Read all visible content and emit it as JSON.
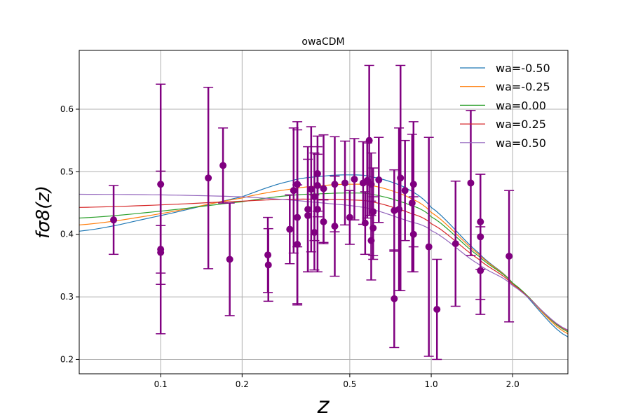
{
  "chart_data": {
    "type": "scatter",
    "title": "owaCDM",
    "xlabel": "z",
    "ylabel": "fσ8(z)",
    "xscale": "log",
    "xlim": [
      0.05,
      3.2
    ],
    "ylim": [
      0.177,
      0.694
    ],
    "grid": true,
    "legend_placement": "top-right",
    "xticks": [
      {
        "v": 0.1,
        "label": "0.1"
      },
      {
        "v": 0.2,
        "label": "0.2"
      },
      {
        "v": 0.5,
        "label": "0.5"
      },
      {
        "v": 1.0,
        "label": "1.0"
      },
      {
        "v": 2.0,
        "label": "2.0"
      }
    ],
    "yticks": [
      {
        "v": 0.2,
        "label": "0.2"
      },
      {
        "v": 0.3,
        "label": "0.3"
      },
      {
        "v": 0.4,
        "label": "0.4"
      },
      {
        "v": 0.5,
        "label": "0.5"
      },
      {
        "v": 0.6,
        "label": "0.6"
      }
    ],
    "data_color": "#800080",
    "data": [
      [
        0.067,
        0.423,
        0.055
      ],
      [
        0.1,
        0.48,
        0.16
      ],
      [
        0.1,
        0.376,
        0.038
      ],
      [
        0.1,
        0.371,
        0.13
      ],
      [
        0.15,
        0.49,
        0.145
      ],
      [
        0.17,
        0.51,
        0.06
      ],
      [
        0.18,
        0.36,
        0.09
      ],
      [
        0.249,
        0.367,
        0.06
      ],
      [
        0.25,
        0.351,
        0.058
      ],
      [
        0.3,
        0.408,
        0.055
      ],
      [
        0.31,
        0.47,
        0.1
      ],
      [
        0.32,
        0.48,
        0.1
      ],
      [
        0.32,
        0.427,
        0.14
      ],
      [
        0.32,
        0.384,
        0.095
      ],
      [
        0.35,
        0.44,
        0.1
      ],
      [
        0.35,
        0.43,
        0.09
      ],
      [
        0.36,
        0.472,
        0.1
      ],
      [
        0.37,
        0.403,
        0.06
      ],
      [
        0.37,
        0.46,
        0.07
      ],
      [
        0.38,
        0.497,
        0.06
      ],
      [
        0.38,
        0.478,
        0.05
      ],
      [
        0.38,
        0.44,
        0.1
      ],
      [
        0.4,
        0.473,
        0.086
      ],
      [
        0.4,
        0.42,
        0.035
      ],
      [
        0.44,
        0.48,
        0.076
      ],
      [
        0.44,
        0.413,
        0.08
      ],
      [
        0.48,
        0.482,
        0.067
      ],
      [
        0.5,
        0.427,
        0.043
      ],
      [
        0.52,
        0.488,
        0.065
      ],
      [
        0.56,
        0.482,
        0.066
      ],
      [
        0.57,
        0.418,
        0.05
      ],
      [
        0.58,
        0.486,
        0.06
      ],
      [
        0.59,
        0.55,
        0.12
      ],
      [
        0.6,
        0.39,
        0.063
      ],
      [
        0.6,
        0.48,
        0.05
      ],
      [
        0.61,
        0.436,
        0.07
      ],
      [
        0.61,
        0.41,
        0.05
      ],
      [
        0.64,
        0.487,
        0.068
      ],
      [
        0.73,
        0.297,
        0.078
      ],
      [
        0.73,
        0.438,
        0.065
      ],
      [
        0.76,
        0.44,
        0.13
      ],
      [
        0.77,
        0.49,
        0.18
      ],
      [
        0.8,
        0.47,
        0.08
      ],
      [
        0.85,
        0.45,
        0.11
      ],
      [
        0.86,
        0.48,
        0.1
      ],
      [
        0.86,
        0.4,
        0.06
      ],
      [
        0.98,
        0.38,
        0.175
      ],
      [
        1.05,
        0.28,
        0.08
      ],
      [
        1.23,
        0.385,
        0.1
      ],
      [
        1.4,
        0.482,
        0.116
      ],
      [
        1.52,
        0.42,
        0.076
      ],
      [
        1.52,
        0.396,
        0.1
      ],
      [
        1.52,
        0.342,
        0.07
      ],
      [
        1.94,
        0.365,
        0.105
      ]
    ],
    "z_grid": [
      0.05,
      0.1,
      0.2,
      0.3,
      0.4,
      0.5,
      0.6,
      0.8,
      1.0,
      1.5,
      2.0,
      3.2
    ],
    "series": [
      {
        "name": "wa=-0.50",
        "color": "#1f77b4",
        "values": [
          0.405,
          0.43,
          0.46,
          0.485,
          0.493,
          0.495,
          0.492,
          0.475,
          0.443,
          0.37,
          0.322,
          0.236
        ]
      },
      {
        "name": "wa=-0.25",
        "color": "#ff7f0e",
        "values": [
          0.415,
          0.433,
          0.458,
          0.472,
          0.478,
          0.48,
          0.478,
          0.462,
          0.435,
          0.368,
          0.322,
          0.241
        ]
      },
      {
        "name": "wa=0.00",
        "color": "#2ca02c",
        "values": [
          0.426,
          0.437,
          0.452,
          0.462,
          0.465,
          0.466,
          0.464,
          0.45,
          0.428,
          0.365,
          0.322,
          0.244
        ]
      },
      {
        "name": "wa=0.25",
        "color": "#d62728",
        "values": [
          0.443,
          0.447,
          0.453,
          0.456,
          0.456,
          0.455,
          0.452,
          0.437,
          0.417,
          0.36,
          0.32,
          0.246
        ]
      },
      {
        "name": "wa=0.50",
        "color": "#9467bd",
        "values": [
          0.464,
          0.463,
          0.46,
          0.455,
          0.45,
          0.446,
          0.44,
          0.423,
          0.406,
          0.352,
          0.318,
          0.247
        ]
      }
    ]
  }
}
